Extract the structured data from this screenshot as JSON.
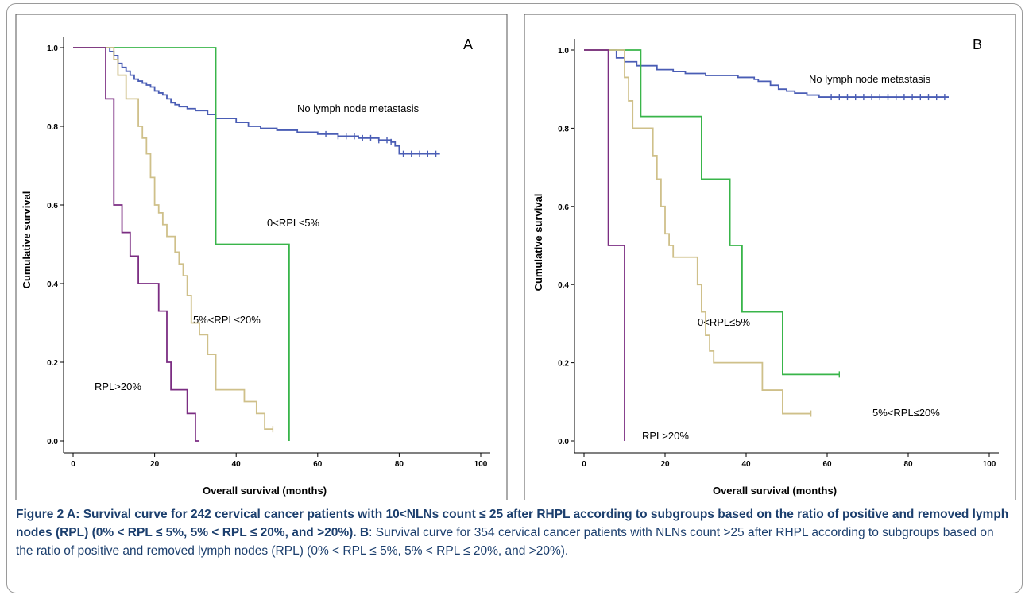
{
  "caption": {
    "fig_label": "Figure 2",
    "part_a": " A: Survival curve for 242 cervical cancer patients with 10<NLNs count ≤ 25 after RHPL according to subgroups based on the ratio of positive and removed lymph nodes (RPL) (0% < RPL ≤ 5%, 5% < RPL ≤ 20%, and >20%).",
    "b_label": " B",
    "part_b": ": Survival curve for 354 cervical cancer patients with NLNs count >25 after RHPL according to subgroups based on the ratio of positive and removed lymph nodes (RPL) (0% < RPL ≤ 5%, 5% < RPL ≤ 20%, and >20%)."
  },
  "chart_data": [
    {
      "type": "line",
      "panel": "A",
      "xlabel": "Overall survival (months)",
      "ylabel": "Cumulative survival",
      "xlim": [
        0,
        100
      ],
      "ylim": [
        0.0,
        1.0
      ],
      "xticks": [
        "0",
        "20",
        "40",
        "60",
        "80",
        "100"
      ],
      "yticks": [
        "0.0",
        "0.2",
        "0.4",
        "0.6",
        "0.8",
        "1.0"
      ],
      "grid": false,
      "step": true,
      "series": [
        {
          "name": "No lymph node metastasis",
          "color": "#4a5db5",
          "x": [
            0,
            8,
            9,
            10,
            11,
            12,
            13,
            14,
            15,
            16,
            17,
            18,
            19,
            20,
            21,
            22,
            23,
            24,
            25,
            26,
            28,
            30,
            33,
            35,
            40,
            43,
            46,
            50,
            55,
            60,
            65,
            70,
            75,
            78,
            79,
            80,
            90
          ],
          "y": [
            1.0,
            1.0,
            0.99,
            0.98,
            0.96,
            0.95,
            0.94,
            0.93,
            0.92,
            0.915,
            0.91,
            0.905,
            0.9,
            0.89,
            0.885,
            0.88,
            0.87,
            0.86,
            0.855,
            0.85,
            0.845,
            0.84,
            0.83,
            0.82,
            0.81,
            0.8,
            0.795,
            0.79,
            0.785,
            0.78,
            0.775,
            0.77,
            0.765,
            0.76,
            0.75,
            0.73,
            0.73
          ],
          "censor_x": [
            62,
            65,
            67,
            69,
            71,
            73,
            75,
            77,
            78,
            81,
            83,
            85,
            87,
            89
          ]
        },
        {
          "name": "0<RPL≤5%",
          "color": "#39b54a",
          "x": [
            0,
            35,
            53
          ],
          "y": [
            1.0,
            0.5,
            0.0
          ],
          "censor_x": []
        },
        {
          "name": "5%<RPL≤20%",
          "color": "#cfc08a",
          "x": [
            0,
            10,
            11,
            13,
            16,
            17,
            18,
            19,
            20,
            21,
            22,
            23,
            25,
            26,
            27,
            28,
            29,
            31,
            33,
            35,
            42,
            45,
            47,
            49
          ],
          "y": [
            1.0,
            0.97,
            0.93,
            0.87,
            0.8,
            0.77,
            0.73,
            0.67,
            0.6,
            0.58,
            0.55,
            0.52,
            0.48,
            0.45,
            0.42,
            0.37,
            0.3,
            0.27,
            0.22,
            0.13,
            0.1,
            0.07,
            0.03,
            0.03
          ],
          "censor_x": [
            49
          ]
        },
        {
          "name": "RPL>20%",
          "color": "#7b2d82",
          "x": [
            0,
            8,
            10,
            12,
            14,
            16,
            18,
            21,
            23,
            24,
            25,
            28,
            30,
            31
          ],
          "y": [
            1.0,
            0.87,
            0.6,
            0.53,
            0.47,
            0.4,
            0.4,
            0.33,
            0.2,
            0.13,
            0.13,
            0.07,
            0.0,
            0.0
          ],
          "censor_x": []
        }
      ]
    },
    {
      "type": "line",
      "panel": "B",
      "xlabel": "Overall survival (months)",
      "ylabel": "Cumulative survival",
      "xlim": [
        0,
        100
      ],
      "ylim": [
        0.0,
        1.0
      ],
      "xticks": [
        "0",
        "20",
        "40",
        "60",
        "80",
        "100"
      ],
      "yticks": [
        "0.0",
        "0.2",
        "0.4",
        "0.6",
        "0.8",
        "1.0"
      ],
      "grid": false,
      "step": true,
      "series": [
        {
          "name": "No lymph node metastasis",
          "color": "#4a5db5",
          "x": [
            0,
            8,
            10,
            13,
            18,
            22,
            25,
            30,
            38,
            42,
            43,
            46,
            48,
            50,
            52,
            55,
            58,
            90
          ],
          "y": [
            1.0,
            0.98,
            0.97,
            0.96,
            0.95,
            0.945,
            0.94,
            0.935,
            0.93,
            0.925,
            0.92,
            0.91,
            0.9,
            0.895,
            0.89,
            0.885,
            0.88,
            0.88
          ],
          "censor_x": [
            61,
            63,
            65,
            67,
            69,
            71,
            73,
            75,
            77,
            79,
            81,
            83,
            85,
            87,
            89
          ]
        },
        {
          "name": "0<RPL≤5%",
          "color": "#39b54a",
          "x": [
            0,
            14,
            29,
            36,
            39,
            49,
            63
          ],
          "y": [
            1.0,
            0.83,
            0.67,
            0.5,
            0.33,
            0.17,
            0.17
          ],
          "censor_x": [
            63
          ]
        },
        {
          "name": "5%<RPL≤20%",
          "color": "#cfc08a",
          "x": [
            0,
            10,
            11,
            12,
            17,
            18,
            19,
            20,
            21,
            22,
            28,
            29,
            30,
            31,
            32,
            44,
            49,
            56
          ],
          "y": [
            1.0,
            0.93,
            0.87,
            0.8,
            0.73,
            0.67,
            0.6,
            0.53,
            0.5,
            0.47,
            0.4,
            0.33,
            0.27,
            0.23,
            0.2,
            0.13,
            0.07,
            0.07
          ],
          "censor_x": [
            56
          ]
        },
        {
          "name": "RPL>20%",
          "color": "#7b2d82",
          "x": [
            0,
            6,
            10
          ],
          "y": [
            1.0,
            0.5,
            0.0
          ],
          "censor_x": []
        }
      ]
    }
  ]
}
